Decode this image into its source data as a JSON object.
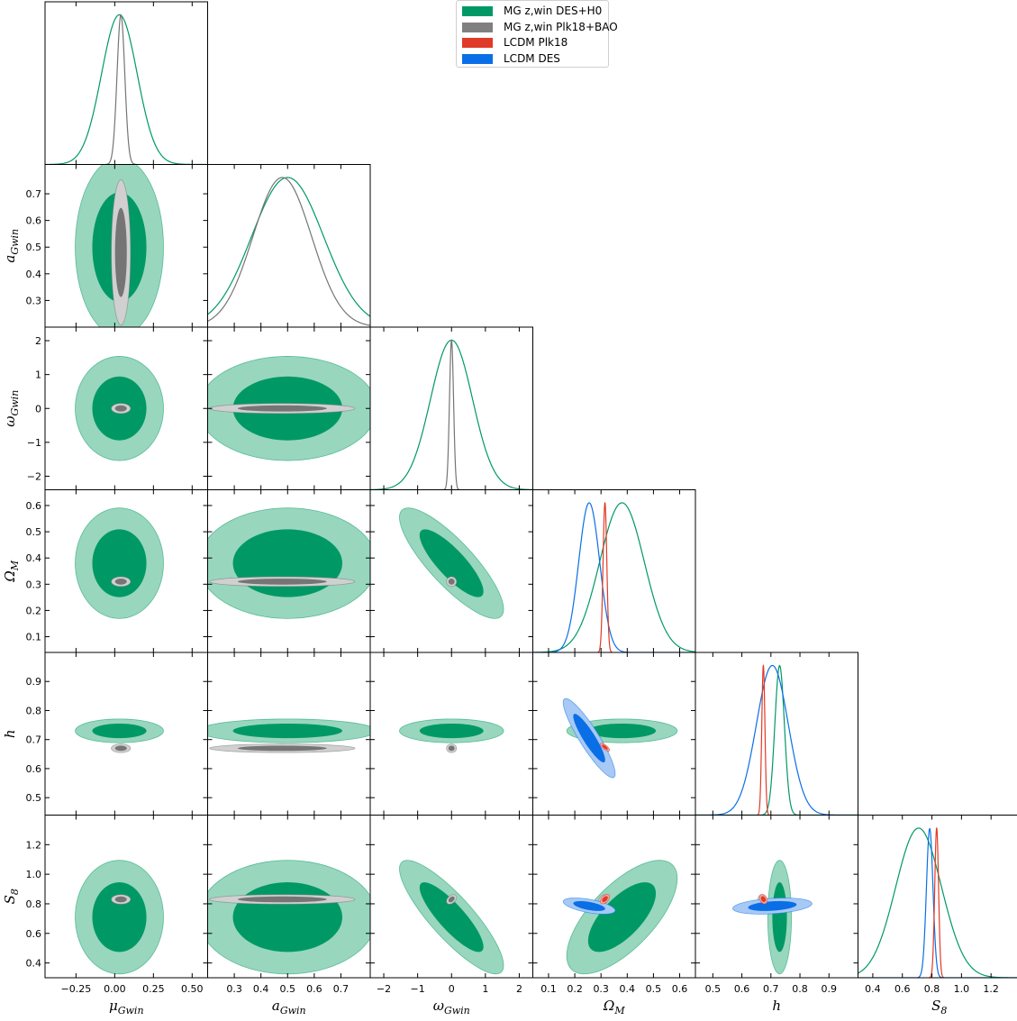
{
  "chart_data": {
    "type": "triangle-corner-plot",
    "params": [
      {
        "key": "mu",
        "label_main": "μ",
        "label_sub": "Gwin",
        "range": [
          -0.45,
          0.6
        ],
        "ticks": [
          -0.25,
          0.0,
          0.25,
          0.5
        ],
        "tick_labels": [
          "−0.25",
          "0.00",
          "0.25",
          "0.50"
        ]
      },
      {
        "key": "a",
        "label_main": "a",
        "label_sub": "Gwin",
        "range": [
          0.2,
          0.81
        ],
        "ticks": [
          0.3,
          0.4,
          0.5,
          0.6,
          0.7
        ],
        "tick_labels": [
          "0.3",
          "0.4",
          "0.5",
          "0.6",
          "0.7"
        ]
      },
      {
        "key": "omega",
        "label_main": "ω",
        "label_sub": "Gwin",
        "range": [
          -2.4,
          2.4
        ],
        "ticks": [
          -2,
          -1,
          0,
          1,
          2
        ],
        "tick_labels": [
          "−2",
          "−1",
          "0",
          "1",
          "2"
        ]
      },
      {
        "key": "Om",
        "label_main": "Ω",
        "label_sub": "M",
        "range": [
          0.04,
          0.66
        ],
        "ticks": [
          0.1,
          0.2,
          0.3,
          0.4,
          0.5,
          0.6
        ],
        "tick_labels": [
          "0.1",
          "0.2",
          "0.3",
          "0.4",
          "0.5",
          "0.6"
        ]
      },
      {
        "key": "h",
        "label_main": "h",
        "label_sub": "",
        "range": [
          0.44,
          1.0
        ],
        "ticks": [
          0.5,
          0.6,
          0.7,
          0.8,
          0.9
        ],
        "tick_labels": [
          "0.5",
          "0.6",
          "0.7",
          "0.8",
          "0.9"
        ]
      },
      {
        "key": "S8",
        "label_main": "S",
        "label_sub": "8",
        "range": [
          0.3,
          1.4
        ],
        "ticks": [
          0.4,
          0.6,
          0.8,
          1.0,
          1.2
        ],
        "tick_labels": [
          "0.4",
          "0.6",
          "0.8",
          "1.0",
          "1.2"
        ]
      }
    ],
    "series": [
      {
        "name": "MG z,win DES+H0",
        "color": "#009966",
        "color_outer": "#99d6be",
        "mean": [
          0.03,
          0.5,
          0.0,
          0.38,
          0.73,
          0.71
        ],
        "sigma": [
          0.115,
          0.135,
          0.62,
          0.085,
          0.0165,
          0.155
        ],
        "corr": [
          [
            1,
            0,
            0,
            0,
            0,
            0
          ],
          [
            0,
            1,
            0,
            0,
            0,
            0
          ],
          [
            0,
            0,
            1,
            -0.83,
            0,
            -0.85
          ],
          [
            0,
            0,
            -0.83,
            1,
            0,
            0.68
          ],
          [
            0,
            0,
            0,
            0,
            1,
            0
          ],
          [
            0,
            0,
            -0.85,
            0.68,
            0,
            1
          ]
        ],
        "diagonal": [
          true,
          true,
          true,
          true,
          true,
          true
        ]
      },
      {
        "name": "MG z,win Plk18+BAO",
        "color": "#757575",
        "color_outer": "#d0d0d0",
        "mean": [
          0.04,
          0.48,
          0.0,
          0.31,
          0.67,
          0.83
        ],
        "sigma": [
          0.025,
          0.11,
          0.06,
          0.0075,
          0.006,
          0.013
        ],
        "corr": [
          [
            1,
            0,
            0,
            0,
            0,
            0
          ],
          [
            0,
            1,
            0,
            0,
            0,
            0
          ],
          [
            0,
            0,
            1,
            0,
            0,
            0.4
          ],
          [
            0,
            0,
            0,
            1,
            -0.6,
            0.3
          ],
          [
            0,
            0,
            0,
            -0.6,
            1,
            0
          ],
          [
            0,
            0,
            0.4,
            0.3,
            0,
            1
          ]
        ],
        "diagonal": [
          true,
          true,
          true,
          false,
          false,
          false
        ]
      },
      {
        "name": "LCDM Plk18",
        "color": "#e03a28",
        "color_outer": "#f2a59c",
        "mean": [
          null,
          null,
          null,
          0.315,
          0.674,
          0.832
        ],
        "sigma": [
          null,
          null,
          null,
          0.0072,
          0.0054,
          0.013
        ],
        "corr": [
          [
            1,
            0,
            0,
            0,
            0,
            0
          ],
          [
            0,
            1,
            0,
            0,
            0,
            0
          ],
          [
            0,
            0,
            1,
            0,
            0,
            0
          ],
          [
            0,
            0,
            0,
            1,
            -0.75,
            0.5
          ],
          [
            0,
            0,
            0,
            -0.75,
            1,
            -0.3
          ],
          [
            0,
            0,
            0,
            0.5,
            -0.3,
            1
          ]
        ],
        "diagonal": [
          false,
          false,
          false,
          true,
          true,
          true
        ]
      },
      {
        "name": "LCDM DES",
        "color": "#0a6fe6",
        "color_outer": "#a7c9f5",
        "mean": [
          null,
          null,
          null,
          0.255,
          0.705,
          0.785
        ],
        "sigma": [
          null,
          null,
          null,
          0.04,
          0.055,
          0.022
        ],
        "corr": [
          [
            1,
            0,
            0,
            0,
            0,
            0
          ],
          [
            0,
            1,
            0,
            0,
            0,
            0
          ],
          [
            0,
            0,
            1,
            0,
            0,
            0
          ],
          [
            0,
            0,
            0,
            1,
            -0.9,
            -0.55
          ],
          [
            0,
            0,
            0,
            -0.9,
            1,
            0.3
          ],
          [
            0,
            0,
            0,
            -0.55,
            0.3,
            1
          ]
        ],
        "diagonal": [
          false,
          false,
          false,
          true,
          true,
          true
        ]
      }
    ],
    "legend_position": "top-center",
    "grid": false
  },
  "legend": {
    "items": [
      {
        "label": "MG z,win DES+H0",
        "color": "#009966"
      },
      {
        "label": "MG z,win Plk18+BAO",
        "color": "#808080"
      },
      {
        "label": "LCDM Plk18",
        "color": "#e03a28"
      },
      {
        "label": "LCDM DES",
        "color": "#0a6fe6"
      }
    ]
  }
}
